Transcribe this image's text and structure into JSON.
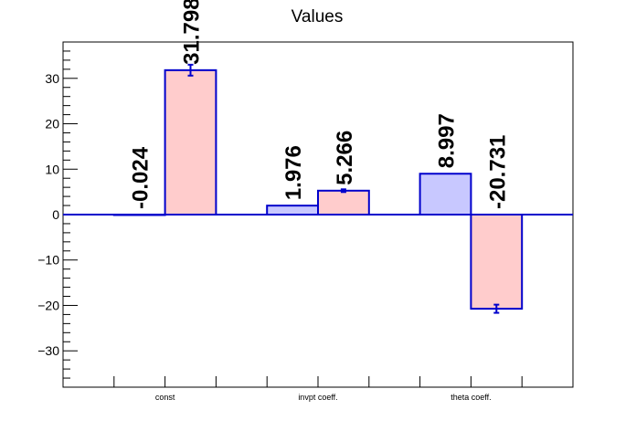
{
  "chart_data": {
    "type": "bar",
    "title": "Values",
    "xlabel": "",
    "ylabel": "",
    "ylim": [
      -38,
      38
    ],
    "yticks": [
      -30,
      -20,
      -10,
      0,
      10,
      20,
      30
    ],
    "grid": false,
    "categories": [
      "const",
      "invpt coeff.",
      "theta coeff."
    ],
    "series": [
      {
        "color": "#c8c8ff",
        "values": [
          -0.024,
          1.976,
          8.997
        ],
        "labels": [
          "-0.024",
          "1.976",
          "8.997"
        ],
        "errors": [
          null,
          null,
          null
        ]
      },
      {
        "color": "#ffcccc",
        "values": [
          31.798,
          5.266,
          -20.731
        ],
        "labels": [
          "31.798",
          "5.266",
          "-20.731"
        ],
        "errors": [
          1.2,
          0.3,
          0.9
        ]
      }
    ],
    "bar_edge_color": "#0000cc"
  }
}
